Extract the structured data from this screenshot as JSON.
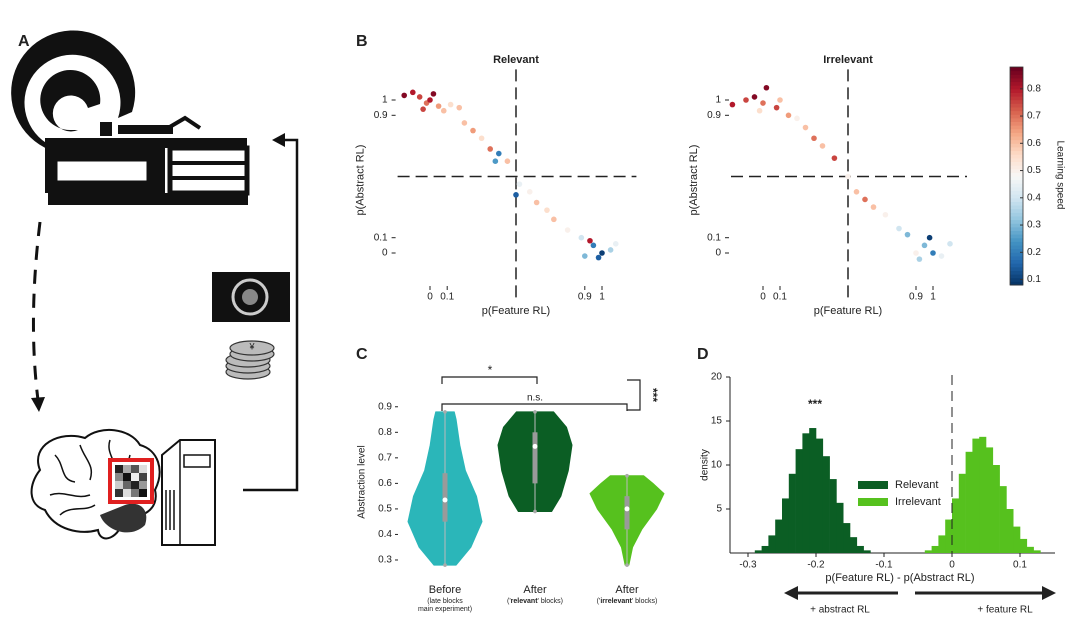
{
  "panel_a": {
    "label": "A",
    "coin_symbol": "¥"
  },
  "panel_b": {
    "label": "B",
    "type": "scatter",
    "xlabel": "p(Feature RL)",
    "ylabel": "p(Abstract RL)",
    "xlim": [
      -0.2,
      1.2
    ],
    "ylim": [
      -0.25,
      1.2
    ],
    "xticks": [
      0,
      0.1,
      0.9,
      1
    ],
    "yticks": [
      0,
      0.1,
      0.9,
      1
    ],
    "divider": 0.5,
    "plots": [
      {
        "title": "Relevant",
        "x": [
          -0.15,
          -0.1,
          -0.06,
          -0.02,
          0.02,
          0.05,
          0.0,
          0.08,
          0.12,
          -0.04,
          0.17,
          0.2,
          0.25,
          0.3,
          0.35,
          0.4,
          0.38,
          0.45,
          0.52,
          0.5,
          0.58,
          0.62,
          0.68,
          0.72,
          0.8,
          0.88,
          0.95,
          1.0,
          0.98,
          1.05,
          0.93,
          1.08,
          0.9
        ],
        "y": [
          1.03,
          1.05,
          1.02,
          0.98,
          1.04,
          0.96,
          1.0,
          0.93,
          0.97,
          0.94,
          0.95,
          0.85,
          0.8,
          0.75,
          0.68,
          0.65,
          0.6,
          0.6,
          0.45,
          0.38,
          0.4,
          0.33,
          0.28,
          0.22,
          0.15,
          0.1,
          0.05,
          0.0,
          -0.03,
          0.02,
          0.08,
          0.06,
          -0.02
        ],
        "speed": [
          0.85,
          0.8,
          0.75,
          0.7,
          0.85,
          0.65,
          0.8,
          0.6,
          0.55,
          0.75,
          0.6,
          0.6,
          0.65,
          0.55,
          0.7,
          0.2,
          0.25,
          0.6,
          0.45,
          0.15,
          0.5,
          0.6,
          0.55,
          0.6,
          0.5,
          0.4,
          0.2,
          0.1,
          0.15,
          0.35,
          0.8,
          0.45,
          0.3
        ]
      },
      {
        "title": "Irrelevant",
        "x": [
          -0.18,
          -0.1,
          -0.05,
          0.0,
          0.02,
          0.08,
          0.1,
          -0.02,
          0.15,
          0.2,
          0.25,
          0.3,
          0.35,
          0.42,
          0.5,
          0.55,
          0.6,
          0.65,
          0.72,
          0.8,
          0.85,
          0.9,
          0.95,
          1.0,
          0.92,
          1.05,
          0.98,
          1.1
        ],
        "y": [
          0.97,
          1.0,
          1.02,
          0.98,
          1.08,
          0.95,
          1.0,
          0.93,
          0.9,
          0.88,
          0.82,
          0.75,
          0.7,
          0.62,
          0.5,
          0.4,
          0.35,
          0.3,
          0.25,
          0.16,
          0.12,
          0.0,
          0.05,
          0.0,
          -0.04,
          -0.02,
          0.1,
          0.06
        ],
        "speed": [
          0.8,
          0.75,
          0.85,
          0.7,
          0.85,
          0.75,
          0.6,
          0.55,
          0.65,
          0.5,
          0.6,
          0.7,
          0.6,
          0.75,
          0.5,
          0.6,
          0.7,
          0.6,
          0.5,
          0.4,
          0.3,
          0.5,
          0.3,
          0.2,
          0.35,
          0.45,
          0.1,
          0.4
        ]
      }
    ],
    "colorbar": {
      "label": "Learning speed",
      "lim": [
        0.08,
        0.88
      ],
      "ticks": [
        0.1,
        0.2,
        0.3,
        0.4,
        0.5,
        0.6,
        0.7,
        0.8
      ]
    }
  },
  "panel_c": {
    "label": "C",
    "type": "violin",
    "ylabel": "Abstraction level",
    "ylim": [
      0.25,
      0.95
    ],
    "yticks": [
      0.3,
      0.4,
      0.5,
      0.6,
      0.7,
      0.8,
      0.9
    ],
    "groups": [
      {
        "name": "Before",
        "note": [
          "(late blocks",
          "main experiment)"
        ],
        "color": "#2bb6b9",
        "min": 0.28,
        "max": 0.88,
        "q1": 0.45,
        "median": 0.535,
        "q3": 0.64,
        "levels": [
          0.28,
          0.35,
          0.45,
          0.55,
          0.65,
          0.75,
          0.85,
          0.88
        ],
        "widths": [
          0.3,
          0.7,
          1,
          0.85,
          0.55,
          0.4,
          0.3,
          0.25
        ]
      },
      {
        "name": "After",
        "note": [
          "('",
          "relevant",
          "' blocks)"
        ],
        "color": "#0b5e24",
        "min": 0.49,
        "max": 0.88,
        "q1": 0.6,
        "median": 0.745,
        "q3": 0.8,
        "levels": [
          0.49,
          0.55,
          0.65,
          0.75,
          0.82,
          0.88
        ],
        "widths": [
          0.45,
          0.7,
          0.9,
          1,
          0.85,
          0.5
        ]
      },
      {
        "name": "After",
        "note": [
          "('",
          "irrelevant",
          "' blocks)"
        ],
        "color": "#56c11e",
        "min": 0.28,
        "max": 0.63,
        "q1": 0.42,
        "median": 0.5,
        "q3": 0.55,
        "levels": [
          0.28,
          0.35,
          0.42,
          0.5,
          0.56,
          0.6,
          0.63
        ],
        "widths": [
          0.05,
          0.15,
          0.4,
          0.8,
          1,
          0.7,
          0.45
        ]
      }
    ],
    "significance": [
      "*",
      "n.s.",
      "***"
    ]
  },
  "panel_d": {
    "label": "D",
    "type": "histogram",
    "xlabel": "p(Feature RL) - p(Abstract RL)",
    "ylabel": "density",
    "xlim": [
      -0.33,
      0.15
    ],
    "ylim": [
      0,
      20
    ],
    "xticks": [
      -0.3,
      -0.2,
      -0.1,
      0,
      0.1
    ],
    "yticks": [
      5,
      10,
      15,
      20
    ],
    "vline": 0,
    "annotation": "***",
    "series": [
      {
        "name": "Relevant",
        "color": "#0b5e24",
        "bins": [
          -0.29,
          -0.28,
          -0.27,
          -0.26,
          -0.25,
          -0.24,
          -0.23,
          -0.22,
          -0.21,
          -0.2,
          -0.19,
          -0.18,
          -0.17,
          -0.16,
          -0.15,
          -0.14,
          -0.13,
          -0.12
        ],
        "counts": [
          0.3,
          0.8,
          2,
          3.8,
          6.2,
          9,
          11.8,
          13.6,
          14.2,
          13,
          11,
          8.4,
          5.7,
          3.4,
          1.8,
          0.8,
          0.3
        ]
      },
      {
        "name": "Irrelevant",
        "color": "#56c11e",
        "bins": [
          -0.04,
          -0.03,
          -0.02,
          -0.01,
          0,
          0.01,
          0.02,
          0.03,
          0.04,
          0.05,
          0.06,
          0.07,
          0.08,
          0.09,
          0.1,
          0.11,
          0.12,
          0.13
        ],
        "counts": [
          0.3,
          0.8,
          2,
          3.8,
          6.2,
          9,
          11.5,
          13,
          13.2,
          12,
          10,
          7.6,
          5,
          3,
          1.6,
          0.7,
          0.3
        ]
      }
    ],
    "arrows": [
      "+ abstract RL",
      "+ feature RL"
    ]
  }
}
